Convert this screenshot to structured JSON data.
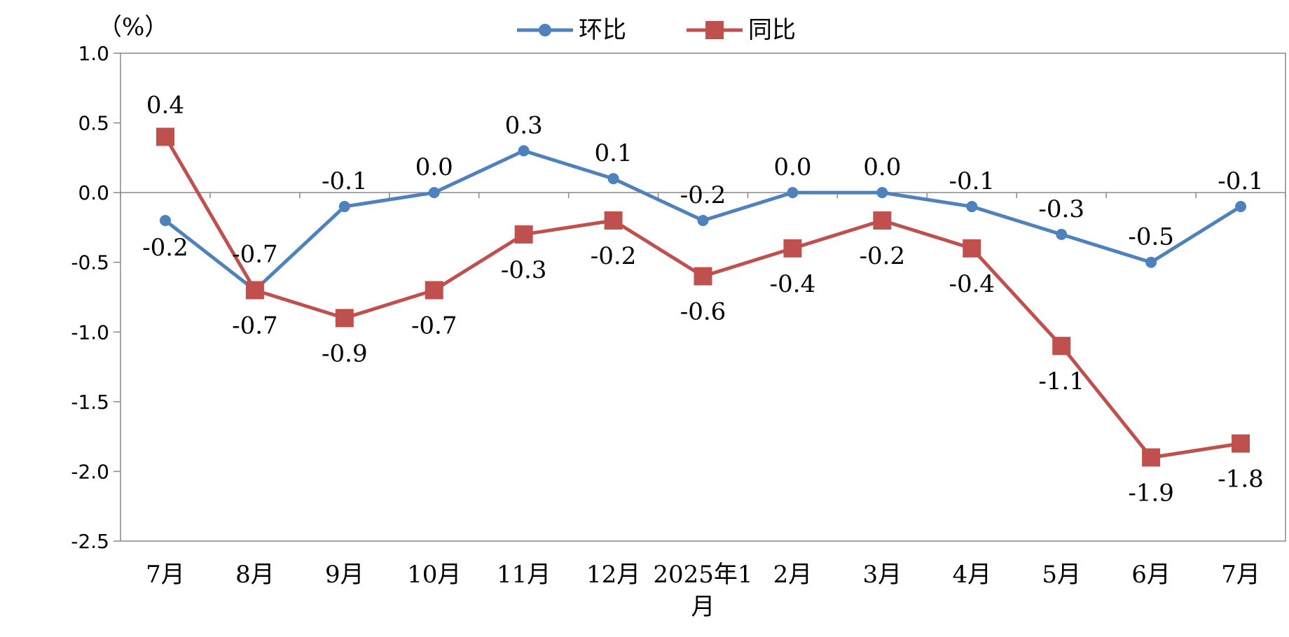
{
  "chart_data": {
    "type": "line",
    "unit_label": "（%）",
    "categories": [
      "7月",
      "8月",
      "9月",
      "10月",
      "11月",
      "12月",
      "2025年1月",
      "2月",
      "3月",
      "4月",
      "5月",
      "6月",
      "7月"
    ],
    "category_lines": [
      [
        "7月"
      ],
      [
        "8月"
      ],
      [
        "9月"
      ],
      [
        "10月"
      ],
      [
        "11月"
      ],
      [
        "12月"
      ],
      [
        "2025年1",
        "月"
      ],
      [
        "2月"
      ],
      [
        "3月"
      ],
      [
        "4月"
      ],
      [
        "5月"
      ],
      [
        "6月"
      ],
      [
        "7月"
      ]
    ],
    "series": [
      {
        "name": "环比",
        "color": "#4F81BD",
        "marker": "circle",
        "values": [
          -0.2,
          -0.7,
          -0.1,
          0.0,
          0.3,
          0.1,
          -0.2,
          0.0,
          0.0,
          -0.1,
          -0.3,
          -0.5,
          -0.1
        ],
        "labels": [
          "-0.2",
          "-0.7",
          "-0.1",
          "0.0",
          "0.3",
          "0.1",
          "-0.2",
          "0.0",
          "0.0",
          "-0.1",
          "-0.3",
          "-0.5",
          "-0.1"
        ]
      },
      {
        "name": "同比",
        "color": "#C0504D",
        "marker": "square",
        "values": [
          0.4,
          -0.7,
          -0.9,
          -0.7,
          -0.3,
          -0.2,
          -0.6,
          -0.4,
          -0.2,
          -0.4,
          -1.1,
          -1.9,
          -1.8
        ],
        "labels": [
          "0.4",
          "-0.7",
          "-0.9",
          "-0.7",
          "-0.3",
          "-0.2",
          "-0.6",
          "-0.4",
          "-0.2",
          "-0.4",
          "-1.1",
          "-1.9",
          "-1.8"
        ]
      }
    ],
    "yticks": [
      "1.0",
      "0.5",
      "0.0",
      "-0.5",
      "-1.0",
      "-1.5",
      "-2.0",
      "-2.5"
    ],
    "ylim": [
      -2.5,
      1.0
    ],
    "grid": false,
    "legend_position": "top-center"
  }
}
